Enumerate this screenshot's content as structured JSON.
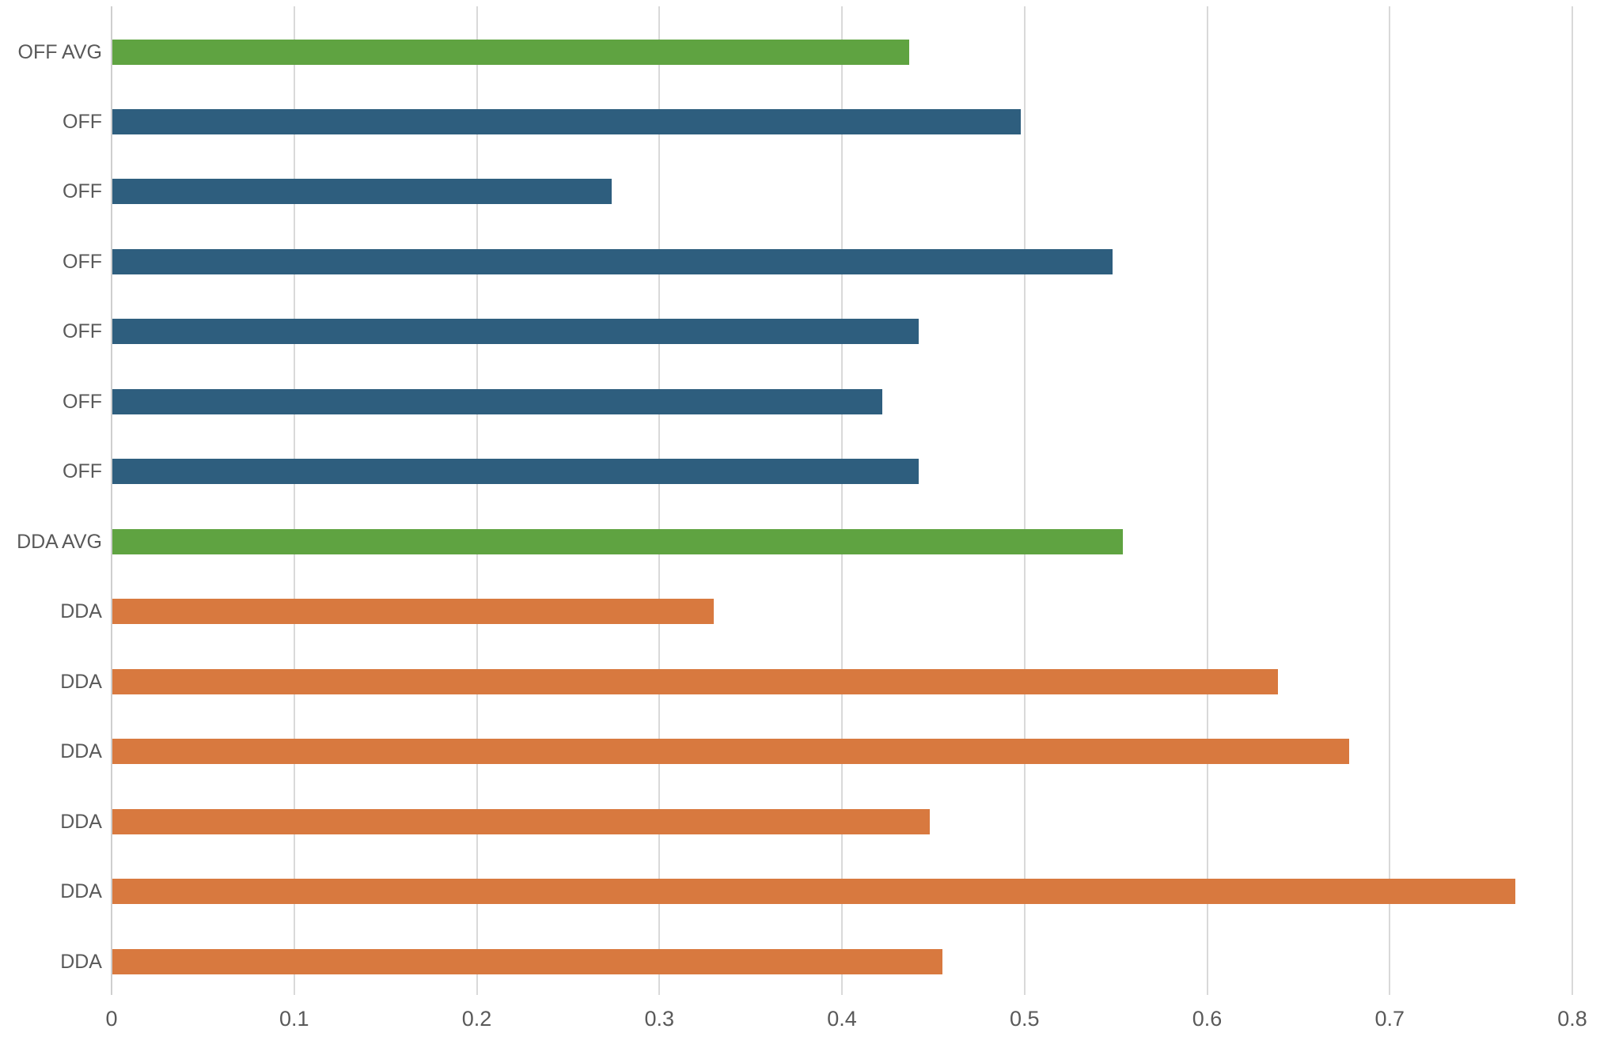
{
  "chart_data": {
    "type": "bar",
    "orientation": "horizontal",
    "title": "",
    "xlabel": "",
    "ylabel": "",
    "categories": [
      "OFF AVG",
      "OFF",
      "OFF",
      "OFF",
      "OFF",
      "OFF",
      "OFF",
      "DDA AVG",
      "DDA",
      "DDA",
      "DDA",
      "DDA",
      "DDA",
      "DDA"
    ],
    "values": [
      0.437,
      0.498,
      0.274,
      0.548,
      0.442,
      0.422,
      0.442,
      0.554,
      0.33,
      0.639,
      0.678,
      0.448,
      0.769,
      0.455
    ],
    "bar_colors": [
      "#5FA341",
      "#2E5E7E",
      "#2E5E7E",
      "#2E5E7E",
      "#2E5E7E",
      "#2E5E7E",
      "#2E5E7E",
      "#5FA341",
      "#D8793F",
      "#D8793F",
      "#D8793F",
      "#D8793F",
      "#D8793F",
      "#D8793F"
    ],
    "series_roles": [
      "average",
      "off",
      "off",
      "off",
      "off",
      "off",
      "off",
      "average",
      "dda",
      "dda",
      "dda",
      "dda",
      "dda",
      "dda"
    ],
    "xlim": [
      0,
      0.8
    ],
    "x_ticks": [
      "0",
      "0.1",
      "0.2",
      "0.3",
      "0.4",
      "0.5",
      "0.6",
      "0.7",
      "0.8"
    ],
    "x_tick_values": [
      0,
      0.1,
      0.2,
      0.3,
      0.4,
      0.5,
      0.6,
      0.7,
      0.8
    ],
    "grid": "vertical",
    "legend": "none",
    "colors": {
      "off_bar": "#2E5E7E",
      "dda_bar": "#D8793F",
      "avg_bar": "#5FA341",
      "gridline": "#D9D9D9",
      "axis_line": "#CFCFCF",
      "tick_label": "#595959",
      "category_label": "#595959",
      "background": "#FFFFFF"
    }
  }
}
